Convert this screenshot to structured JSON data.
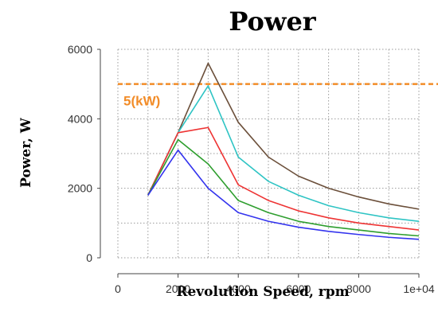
{
  "chart_data": {
    "type": "line",
    "title": "Power",
    "xlabel": "Revolution Speed, rpm",
    "ylabel": "Power, W",
    "xlim": [
      0,
      10000
    ],
    "ylim": [
      0,
      6000
    ],
    "xticks": [
      0,
      2000,
      4000,
      6000,
      8000,
      10000
    ],
    "xtick_labels": [
      "0",
      "2000",
      "4000",
      "6000",
      "8000",
      "1e+04"
    ],
    "yticks": [
      0,
      2000,
      4000,
      6000
    ],
    "ytick_labels": [
      "0",
      "2000",
      "4000",
      "6000"
    ],
    "grid": true,
    "x": [
      1000,
      2000,
      3000,
      4000,
      5000,
      6000,
      7000,
      8000,
      9000,
      10000
    ],
    "series": [
      {
        "color": "#6b4f3a",
        "values": [
          1800,
          3600,
          5600,
          3900,
          2900,
          2350,
          2000,
          1750,
          1550,
          1400
        ]
      },
      {
        "color": "#2ec4c4",
        "values": [
          1800,
          3600,
          4950,
          2900,
          2200,
          1800,
          1500,
          1300,
          1150,
          1050
        ]
      },
      {
        "color": "#ee3333",
        "values": [
          1800,
          3600,
          3750,
          2100,
          1650,
          1350,
          1150,
          1000,
          900,
          800
        ]
      },
      {
        "color": "#2e9e2e",
        "values": [
          1800,
          3400,
          2700,
          1650,
          1300,
          1050,
          900,
          800,
          700,
          630
        ]
      },
      {
        "color": "#3333ee",
        "values": [
          1800,
          3100,
          2000,
          1300,
          1050,
          880,
          760,
          670,
          590,
          530
        ]
      }
    ],
    "reference_line": {
      "y": 5000,
      "label": "5(kW)",
      "color": "#f28c28"
    }
  }
}
